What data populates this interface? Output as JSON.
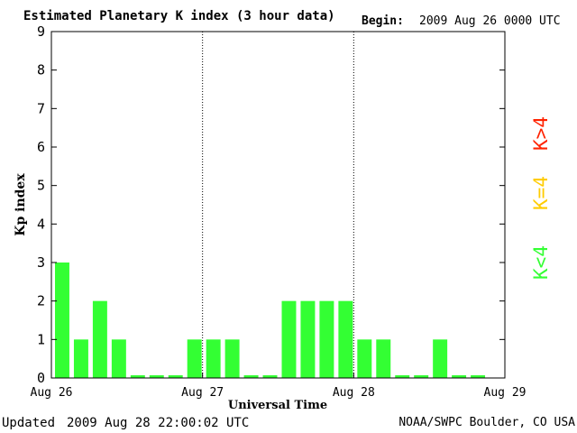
{
  "header": {
    "title": "Estimated Planetary K index (3 hour data)",
    "begin_label": "Begin:",
    "begin_value": "2009 Aug 26 0000 UTC"
  },
  "footer": {
    "updated_label": "Updated",
    "updated_value": "2009 Aug 28 22:00:02 UTC",
    "credit": "NOAA/SWPC Boulder, CO USA"
  },
  "legend": {
    "less": {
      "label": "K<4",
      "color": "#33ff33"
    },
    "equal": {
      "label": "K=4",
      "color": "#ffcc00"
    },
    "greater": {
      "label": "K>4",
      "color": "#ff2200"
    }
  },
  "chart_data": {
    "type": "bar",
    "title": "Estimated Planetary K index (3 hour data)",
    "xlabel": "Universal Time",
    "ylabel": "Kp index",
    "ylim": [
      0,
      9
    ],
    "yticks": [
      0,
      1,
      2,
      3,
      4,
      5,
      6,
      7,
      8,
      9
    ],
    "xticks": [
      "Aug 26",
      "Aug 27",
      "Aug 28",
      "Aug 29"
    ],
    "bar_color": "#33ff33",
    "day_separators": "dotted",
    "series": [
      {
        "values": [
          3,
          1,
          2,
          1,
          0,
          0,
          0,
          1,
          1,
          1,
          0,
          0,
          2,
          2,
          2,
          2,
          1,
          1,
          0,
          0,
          1,
          0,
          0
        ]
      }
    ]
  }
}
